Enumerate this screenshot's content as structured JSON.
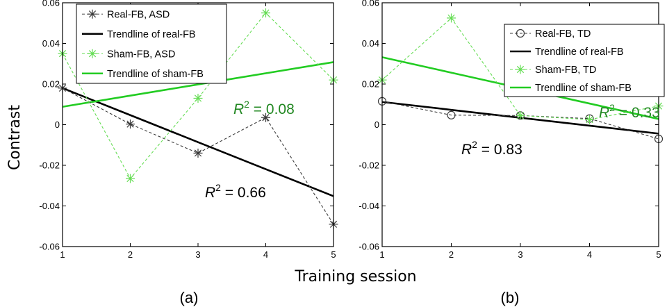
{
  "ylabel": "Contrast",
  "xlabel": "Training session",
  "colors": {
    "real": "#3a3a3a",
    "real_trend": "#000000",
    "sham": "#66dd55",
    "sham_trend": "#22cc22",
    "r2_real": "#000000",
    "r2_sham": "#228822"
  },
  "chart_data": [
    {
      "type": "line",
      "panel_label": "(a)",
      "x": [
        1,
        2,
        3,
        4,
        5
      ],
      "xlim": [
        1,
        5
      ],
      "ylim": [
        -0.06,
        0.06
      ],
      "yticks": [
        -0.06,
        -0.04,
        -0.02,
        0,
        0.02,
        0.04,
        0.06
      ],
      "ytick_labels": [
        "-0.06",
        "-0.04",
        "-0.02",
        "0",
        "0.02",
        "0.04",
        "0.06"
      ],
      "xtick_labels": [
        "1",
        "2",
        "3",
        "4",
        "5"
      ],
      "marker_real": "star",
      "series": [
        {
          "name": "Real-FB, ASD",
          "role": "real",
          "values": [
            0.018,
            0.0003,
            -0.014,
            0.0035,
            -0.049
          ]
        },
        {
          "name": "Trendline of real-FB",
          "role": "real_trend",
          "values": [
            0.018,
            0.0047,
            -0.0086,
            -0.0219,
            -0.0352
          ]
        },
        {
          "name": "Sham-FB, ASD",
          "role": "sham",
          "values": [
            0.035,
            -0.0265,
            0.013,
            0.055,
            0.022
          ]
        },
        {
          "name": "Trendline of sham-FB",
          "role": "sham_trend",
          "values": [
            0.0088,
            0.0143,
            0.0198,
            0.0253,
            0.0308
          ]
        }
      ],
      "annotations": [
        {
          "r_label": "R",
          "sup": "2",
          "rest": " = 0.08",
          "role": "sham"
        },
        {
          "r_label": "R",
          "sup": "2",
          "rest": " = 0.66",
          "role": "real"
        }
      ]
    },
    {
      "type": "line",
      "panel_label": "(b)",
      "x": [
        1,
        2,
        3,
        4,
        5
      ],
      "xlim": [
        1,
        5
      ],
      "ylim": [
        -0.06,
        0.06
      ],
      "yticks": [
        -0.06,
        -0.04,
        -0.02,
        0,
        0.02,
        0.04,
        0.06
      ],
      "ytick_labels": [
        "-0.06",
        "-0.04",
        "-0.02",
        "0",
        "0.02",
        "0.04",
        "0.06"
      ],
      "xtick_labels": [
        "1",
        "2",
        "3",
        "4",
        "5"
      ],
      "marker_real": "circle",
      "series": [
        {
          "name": "Real-FB, TD",
          "role": "real",
          "values": [
            0.0115,
            0.0047,
            0.0045,
            0.003,
            -0.007
          ]
        },
        {
          "name": "Trendline of real-FB",
          "role": "real_trend",
          "values": [
            0.0112,
            0.0073,
            0.0034,
            -0.0005,
            -0.0044
          ]
        },
        {
          "name": "Sham-FB, TD",
          "role": "sham",
          "values": [
            0.022,
            0.0525,
            0.0045,
            0.0025,
            0.0092
          ]
        },
        {
          "name": "Trendline of sham-FB",
          "role": "sham_trend",
          "values": [
            0.0332,
            0.0256,
            0.018,
            0.0104,
            0.0028
          ]
        }
      ],
      "annotations": [
        {
          "r_label": "R",
          "sup": "2",
          "rest": " = 0.33",
          "role": "sham"
        },
        {
          "r_label": "R",
          "sup": "2",
          "rest": " = 0.83",
          "role": "real"
        }
      ]
    }
  ]
}
